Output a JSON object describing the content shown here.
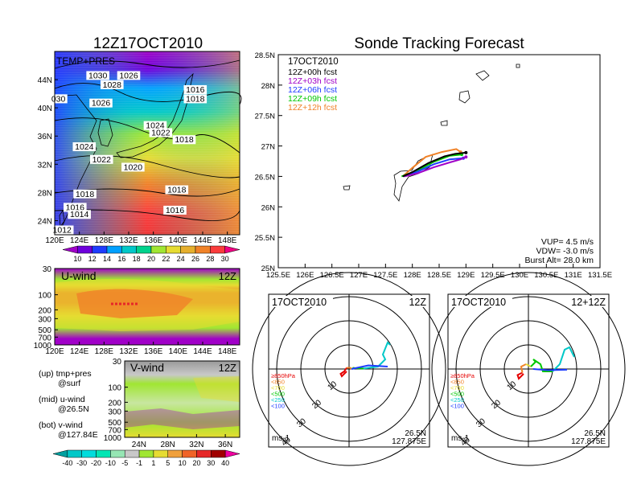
{
  "left_panel": {
    "title": "12Z17OCT2010",
    "map": {
      "label": "TEMP+PRES",
      "lat_ticks": [
        "44N",
        "40N",
        "36N",
        "32N",
        "28N",
        "24N"
      ],
      "lon_ticks": [
        "120E",
        "124E",
        "128E",
        "132E",
        "136E",
        "140E",
        "144E",
        "148E"
      ],
      "isobar_labels": [
        {
          "text": "1030",
          "lon": 127.0,
          "lat": 44.3
        },
        {
          "text": "1026",
          "lon": 132.0,
          "lat": 44.3
        },
        {
          "text": "1028",
          "lon": 129.3,
          "lat": 43.0
        },
        {
          "text": "030",
          "lon": 120.6,
          "lat": 41.0
        },
        {
          "text": "1026",
          "lon": 127.5,
          "lat": 40.4
        },
        {
          "text": "1016",
          "lon": 142.8,
          "lat": 42.3
        },
        {
          "text": "1018",
          "lon": 142.8,
          "lat": 41.0
        },
        {
          "text": "1024",
          "lon": 136.3,
          "lat": 37.2
        },
        {
          "text": "1022",
          "lon": 137.2,
          "lat": 36.2
        },
        {
          "text": "1018",
          "lon": 141.0,
          "lat": 35.2
        },
        {
          "text": "1024",
          "lon": 124.8,
          "lat": 34.2
        },
        {
          "text": "1022",
          "lon": 127.6,
          "lat": 32.4
        },
        {
          "text": "1020",
          "lon": 132.7,
          "lat": 31.3
        },
        {
          "text": "1018",
          "lon": 139.8,
          "lat": 28.1
        },
        {
          "text": "1018",
          "lon": 124.9,
          "lat": 27.5
        },
        {
          "text": "1016",
          "lon": 123.3,
          "lat": 25.6
        },
        {
          "text": "1014",
          "lon": 124.0,
          "lat": 24.6
        },
        {
          "text": "1016",
          "lon": 139.5,
          "lat": 25.2
        },
        {
          "text": "1012",
          "lon": 121.2,
          "lat": 22.4
        }
      ]
    },
    "temp_colorbar": {
      "labels": [
        "10",
        "12",
        "14",
        "16",
        "18",
        "20",
        "22",
        "24",
        "26",
        "28",
        "30"
      ],
      "colors": [
        "#a000c8",
        "#6e00dc",
        "#1e3cff",
        "#00a0ff",
        "#00c8c8",
        "#00d28c",
        "#a0e632",
        "#e6dc32",
        "#e6af2d",
        "#f08228",
        "#fa3c3c",
        "#f00082"
      ]
    },
    "u_wind": {
      "label": "U-wind",
      "time": "12Z",
      "y_ticks": [
        "30",
        "100",
        "200",
        "300",
        "500",
        "700",
        "1000"
      ],
      "x_ticks": [
        "120E",
        "124E",
        "128E",
        "132E",
        "136E",
        "140E",
        "144E",
        "148E"
      ]
    },
    "v_wind": {
      "label": "V-wind",
      "time": "12Z",
      "y_ticks": [
        "30",
        "100",
        "200",
        "300",
        "500",
        "700",
        "1000"
      ],
      "x_ticks": [
        "24N",
        "28N",
        "32N",
        "36N"
      ]
    },
    "legend_lines": [
      "(up) tmp+pres",
      "@surf",
      "(mid) u-wind",
      "@26.5N",
      "(bot) v-wind",
      "@127.84E"
    ],
    "wind_colorbar": {
      "labels": [
        "-40",
        "-30",
        "-20",
        "-10",
        "-5",
        "-1",
        "1",
        "5",
        "10",
        "20",
        "30",
        "40"
      ],
      "colors": [
        "#00a0a0",
        "#00c8c8",
        "#00dcdc",
        "#00e6b4",
        "#96e6b4",
        "#c8c8c8",
        "#a0e632",
        "#e6dc32",
        "#f0a03c",
        "#f06428",
        "#e62828",
        "#a00000",
        "#f000a0"
      ]
    }
  },
  "tracking": {
    "title": "Sonde Tracking Forecast",
    "date": "17OCT2010",
    "legend": [
      {
        "text": "12Z+00h  fcst",
        "color": "#000000"
      },
      {
        "text": "12Z+03h  fcst",
        "color": "#a000c8"
      },
      {
        "text": "12Z+06h  fcst",
        "color": "#1e3cff"
      },
      {
        "text": "12Z+09h  fcst",
        "color": "#00c800"
      },
      {
        "text": "12Z+12h  fcst",
        "color": "#f08228"
      }
    ],
    "stats": [
      "VUP=  4.5  m/s",
      "VDW= -3.0  m/s",
      "Burst Alt=  28.0  km"
    ],
    "lat_ticks": [
      "28.5N",
      "28N",
      "27.5N",
      "27N",
      "26.5N",
      "26N",
      "25.5N",
      "25N"
    ],
    "lon_ticks": [
      "125.5E",
      "126E",
      "126.5E",
      "127E",
      "127.5E",
      "128E",
      "128.5E",
      "129E",
      "129.5E",
      "130E",
      "130.5E",
      "131E",
      "131.5E"
    ]
  },
  "chart_data": [
    {
      "type": "heatmap",
      "title": "12Z17OCT2010",
      "subtitle": "TEMP+PRES",
      "xlim": [
        120,
        150
      ],
      "ylim": [
        22,
        48
      ],
      "x_ticks": [
        "120E",
        "124E",
        "128E",
        "132E",
        "136E",
        "140E",
        "144E",
        "148E"
      ],
      "y_ticks": [
        "24N",
        "28N",
        "32N",
        "36N",
        "40N",
        "44N"
      ],
      "colorbar": [
        10,
        12,
        14,
        16,
        18,
        20,
        22,
        24,
        26,
        28,
        30
      ],
      "isobars_hPa": [
        1012,
        1014,
        1016,
        1018,
        1020,
        1022,
        1024,
        1026,
        1028,
        1030
      ]
    },
    {
      "type": "heatmap",
      "title": "U-wind",
      "subtitle": "12Z",
      "xlim": [
        120,
        150
      ],
      "ylim_hPa": [
        1000,
        30
      ],
      "x_ticks": [
        "120E",
        "124E",
        "128E",
        "132E",
        "136E",
        "140E",
        "144E",
        "148E"
      ],
      "y_ticks": [
        "30",
        "100",
        "200",
        "300",
        "500",
        "700",
        "1000"
      ],
      "jet_max_level_hPa": 200
    },
    {
      "type": "heatmap",
      "title": "V-wind",
      "subtitle": "12Z",
      "xlim": [
        22,
        38
      ],
      "ylim_hPa": [
        1000,
        30
      ],
      "x_ticks": [
        "24N",
        "28N",
        "32N",
        "36N"
      ],
      "y_ticks": [
        "30",
        "100",
        "200",
        "300",
        "500",
        "700",
        "1000"
      ],
      "colorbar": [
        -40,
        -30,
        -20,
        -10,
        -5,
        -1,
        1,
        5,
        10,
        20,
        30,
        40
      ]
    },
    {
      "type": "line",
      "title": "Sonde Tracking Forecast",
      "xlim": [
        125.5,
        131.5
      ],
      "ylim": [
        25,
        28.5
      ],
      "series": [
        {
          "name": "12Z+00h  fcst",
          "color": "#000000",
          "x": [
            127.82,
            128.0,
            128.3,
            128.6,
            128.8,
            129.0
          ],
          "y": [
            26.5,
            26.57,
            26.72,
            26.83,
            26.87,
            26.89
          ]
        },
        {
          "name": "12Z+03h  fcst",
          "color": "#a000c8",
          "x": [
            127.85,
            128.1,
            128.4,
            128.7,
            128.9,
            129.0
          ],
          "y": [
            26.5,
            26.55,
            26.65,
            26.73,
            26.78,
            26.82
          ]
        },
        {
          "name": "12Z+06h  fcst",
          "color": "#1e3cff",
          "x": [
            127.84,
            128.1,
            128.4,
            128.7,
            128.95
          ],
          "y": [
            26.5,
            26.58,
            26.7,
            26.78,
            26.8
          ]
        },
        {
          "name": "12Z+09h  fcst",
          "color": "#00c800",
          "x": [
            127.8,
            128.1,
            128.4,
            128.7,
            128.92
          ],
          "y": [
            26.5,
            26.6,
            26.74,
            26.84,
            26.86
          ]
        },
        {
          "name": "12Z+12h  fcst",
          "color": "#f08228",
          "x": [
            127.82,
            128.0,
            128.25,
            128.55,
            128.82,
            128.9
          ],
          "y": [
            26.5,
            26.64,
            26.82,
            26.9,
            26.95,
            26.9
          ]
        }
      ]
    },
    {
      "type": "line",
      "title": "17OCT2010",
      "subtitle": "12Z",
      "center": "26.5N 127.875E",
      "unit": "ms-1",
      "ring_labels": [
        "10",
        "20",
        "30",
        "40"
      ],
      "level_legend": [
        "≥850hPa",
        "<850",
        "<700",
        "<500",
        "<250",
        "<100"
      ],
      "level_colors": [
        "#e60000",
        "#f08228",
        "#e6dc32",
        "#00c800",
        "#00c8c8",
        "#1e3cff"
      ],
      "hodograph_uv": [
        {
          "level": "≥850hPa",
          "color": "#e60000",
          "points": [
            [
              -1,
              -1
            ],
            [
              -3,
              -3
            ],
            [
              -3.5,
              -2
            ],
            [
              -2,
              -1
            ],
            [
              -1,
              0.5
            ]
          ]
        },
        {
          "level": "<850",
          "color": "#f08228",
          "points": [
            [
              -1,
              0.5
            ],
            [
              0.5,
              0.5
            ],
            [
              1,
              0
            ]
          ]
        },
        {
          "level": "<700",
          "color": "#e6dc32",
          "points": [
            [
              1,
              0
            ],
            [
              1.5,
              0.5
            ]
          ]
        },
        {
          "level": "<500",
          "color": "#00c800",
          "points": [
            [
              1.5,
              0.5
            ],
            [
              3,
              0.3
            ],
            [
              6,
              0.2
            ]
          ]
        },
        {
          "level": "<250",
          "color": "#00c8c8",
          "points": [
            [
              6,
              0.2
            ],
            [
              12,
              1
            ],
            [
              15,
              4
            ],
            [
              14,
              6
            ],
            [
              16,
              11
            ],
            [
              17,
              10
            ]
          ]
        },
        {
          "level": "<100",
          "color": "#1e3cff",
          "points": [
            [
              1,
              0
            ],
            [
              8,
              1.5
            ],
            [
              16,
              1
            ]
          ]
        }
      ]
    },
    {
      "type": "line",
      "title": "17OCT2010",
      "subtitle": "12+12Z",
      "center": "26.5N 127.875E",
      "unit": "ms-1",
      "ring_labels": [
        "10",
        "20",
        "30",
        "40"
      ],
      "level_legend": [
        "≥850hPa",
        "<850",
        "<700",
        "<500",
        "<250",
        "<100"
      ],
      "level_colors": [
        "#e60000",
        "#f08228",
        "#e6dc32",
        "#00c800",
        "#00c8c8",
        "#1e3cff"
      ],
      "hodograph_uv": [
        {
          "level": "≥850hPa",
          "color": "#e60000",
          "points": [
            [
              -2,
              -2
            ],
            [
              -4,
              -4
            ],
            [
              -4.5,
              -2.5
            ],
            [
              -2.5,
              -1.5
            ]
          ]
        },
        {
          "level": "<850",
          "color": "#f08228",
          "points": [
            [
              -2.5,
              -1.5
            ],
            [
              -3,
              1
            ],
            [
              -1,
              2
            ]
          ]
        },
        {
          "level": "<700",
          "color": "#e6dc32",
          "points": [
            [
              -1,
              2
            ],
            [
              1,
              1
            ]
          ]
        },
        {
          "level": "<500",
          "color": "#00c800",
          "points": [
            [
              1,
              1
            ],
            [
              3,
              3
            ],
            [
              2,
              4
            ],
            [
              5,
              2
            ],
            [
              6,
              -1
            ],
            [
              10,
              -1
            ]
          ]
        },
        {
          "level": "<250",
          "color": "#00c8c8",
          "points": [
            [
              10,
              -1
            ],
            [
              13,
              2
            ],
            [
              15,
              8
            ],
            [
              17,
              9
            ],
            [
              19,
              5
            ]
          ]
        },
        {
          "level": "<100",
          "color": "#1e3cff",
          "points": [
            [
              2,
              0
            ],
            [
              8,
              -0.5
            ],
            [
              16,
              -0.3
            ]
          ]
        }
      ]
    }
  ]
}
